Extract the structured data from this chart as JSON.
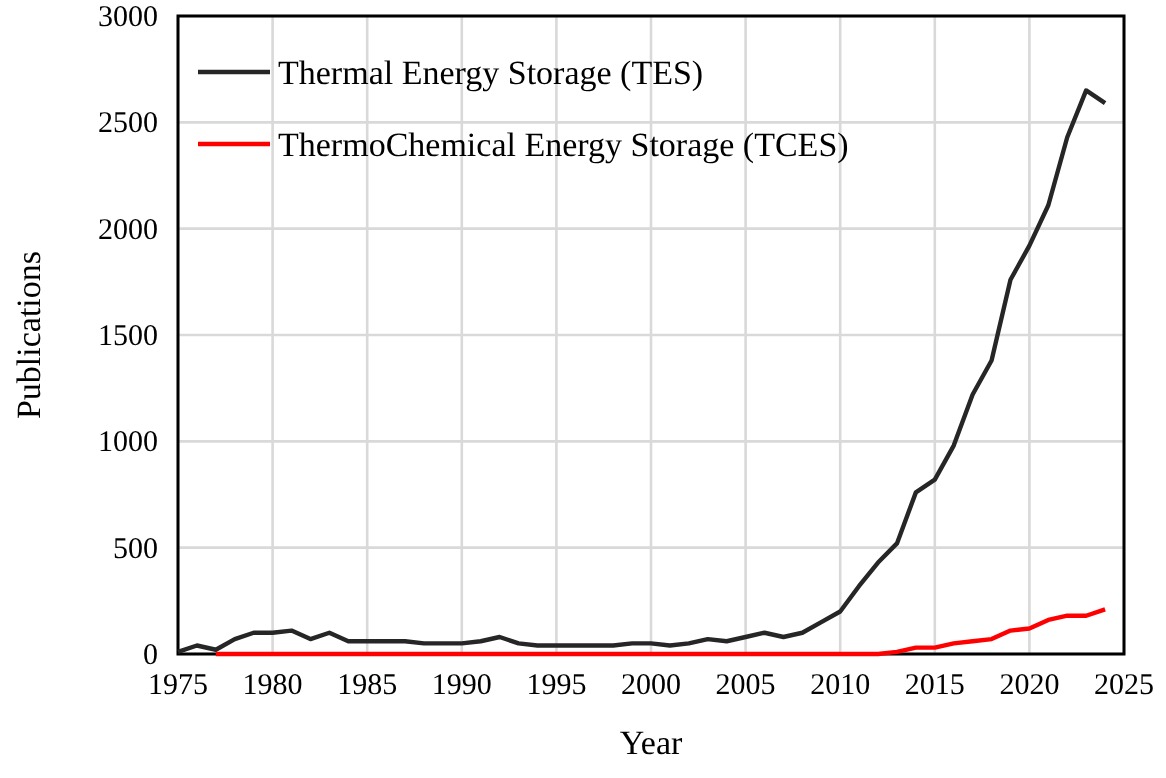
{
  "chart_data": {
    "type": "line",
    "xlabel": "Year",
    "ylabel": "Publications",
    "xlim": [
      1975,
      2025
    ],
    "xticks": [
      1975,
      1980,
      1985,
      1990,
      1995,
      2000,
      2005,
      2010,
      2015,
      2020,
      2025
    ],
    "ylim": [
      0,
      3000
    ],
    "yticks": [
      0,
      500,
      1000,
      1500,
      2000,
      2500,
      3000
    ],
    "grid": true,
    "legend": "top left",
    "marker": "none",
    "line_style": "solid",
    "series": [
      {
        "name": "Thermal Energy Storage (TES)",
        "color": "#262626",
        "x": [
          1975,
          1976,
          1977,
          1978,
          1979,
          1980,
          1981,
          1982,
          1983,
          1984,
          1985,
          1986,
          1987,
          1988,
          1989,
          1990,
          1991,
          1992,
          1993,
          1994,
          1995,
          1996,
          1997,
          1998,
          1999,
          2000,
          2001,
          2002,
          2003,
          2004,
          2005,
          2006,
          2007,
          2008,
          2009,
          2010,
          2011,
          2012,
          2013,
          2014,
          2015,
          2016,
          2017,
          2018,
          2019,
          2020,
          2021,
          2022,
          2023,
          2024
        ],
        "values": [
          10,
          40,
          20,
          70,
          100,
          100,
          110,
          70,
          100,
          60,
          60,
          60,
          60,
          50,
          50,
          50,
          60,
          80,
          50,
          40,
          40,
          40,
          40,
          40,
          50,
          50,
          40,
          50,
          70,
          60,
          80,
          100,
          80,
          100,
          150,
          200,
          320,
          430,
          520,
          760,
          820,
          980,
          1220,
          1380,
          1760,
          1920,
          2110,
          2430,
          2650,
          2590
        ]
      },
      {
        "name": "ThermoChemical Energy Storage (TCES)",
        "color": "#ff0000",
        "x": [
          1977,
          1980,
          1985,
          1990,
          1995,
          2000,
          2005,
          2010,
          2011,
          2012,
          2013,
          2014,
          2015,
          2016,
          2017,
          2018,
          2019,
          2020,
          2021,
          2022,
          2023,
          2024
        ],
        "values": [
          0,
          0,
          0,
          0,
          0,
          0,
          0,
          0,
          0,
          0,
          10,
          30,
          30,
          50,
          60,
          70,
          110,
          120,
          160,
          180,
          180,
          210
        ]
      }
    ]
  }
}
